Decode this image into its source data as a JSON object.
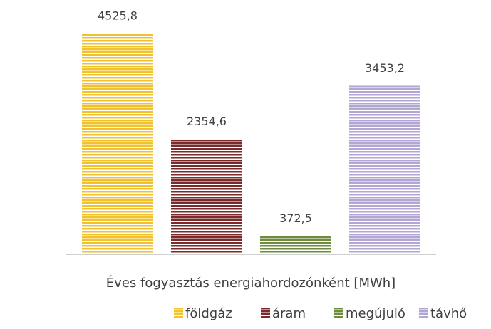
{
  "chart_data": {
    "type": "bar",
    "categories": [
      "Éves fogyasztás energiahordozónként [MWh]"
    ],
    "series": [
      {
        "name": "földgáz",
        "color": "#f2c12e",
        "values": [
          4525.8
        ],
        "value_labels": [
          "4525,8"
        ]
      },
      {
        "name": "áram",
        "color": "#7a2a2a",
        "values": [
          2354.6
        ],
        "value_labels": [
          "2354,6"
        ]
      },
      {
        "name": "megújuló",
        "color": "#6f8c3c",
        "values": [
          372.5
        ],
        "value_labels": [
          "372,5"
        ]
      },
      {
        "name": "távhő",
        "color": "#b3a6d4",
        "values": [
          3453.2
        ],
        "value_labels": [
          "3453,2"
        ]
      }
    ],
    "ylim": [
      0,
      5000
    ],
    "legend": "bottom"
  }
}
